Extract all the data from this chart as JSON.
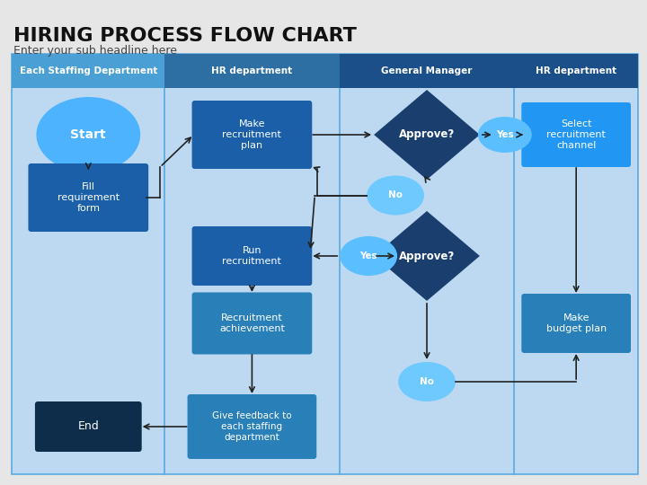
{
  "title": "HIRING PROCESS FLOW CHART",
  "subtitle": "Enter your sub headline here",
  "bg_color": "#e6e6e6",
  "chart_bg": "#bdd9f2",
  "col_headers": [
    "Each Staffing Department",
    "HR department",
    "General Manager",
    "HR department"
  ],
  "col_colors": [
    "#4a9fd4",
    "#2e6fa3",
    "#1b4f8a",
    "#1b4f8a"
  ],
  "box_dark": "#1a5fa8",
  "box_mid": "#2980b9",
  "box_light": "#2196f3",
  "oval_start": "#4db3ff",
  "oval_yes": "#5bbfff",
  "oval_no": "#6ec9ff",
  "diamond": "#1a3f6f",
  "end_box": "#0d2d4a",
  "arrow_col": "#222222",
  "divider_col": "#5aaae0"
}
